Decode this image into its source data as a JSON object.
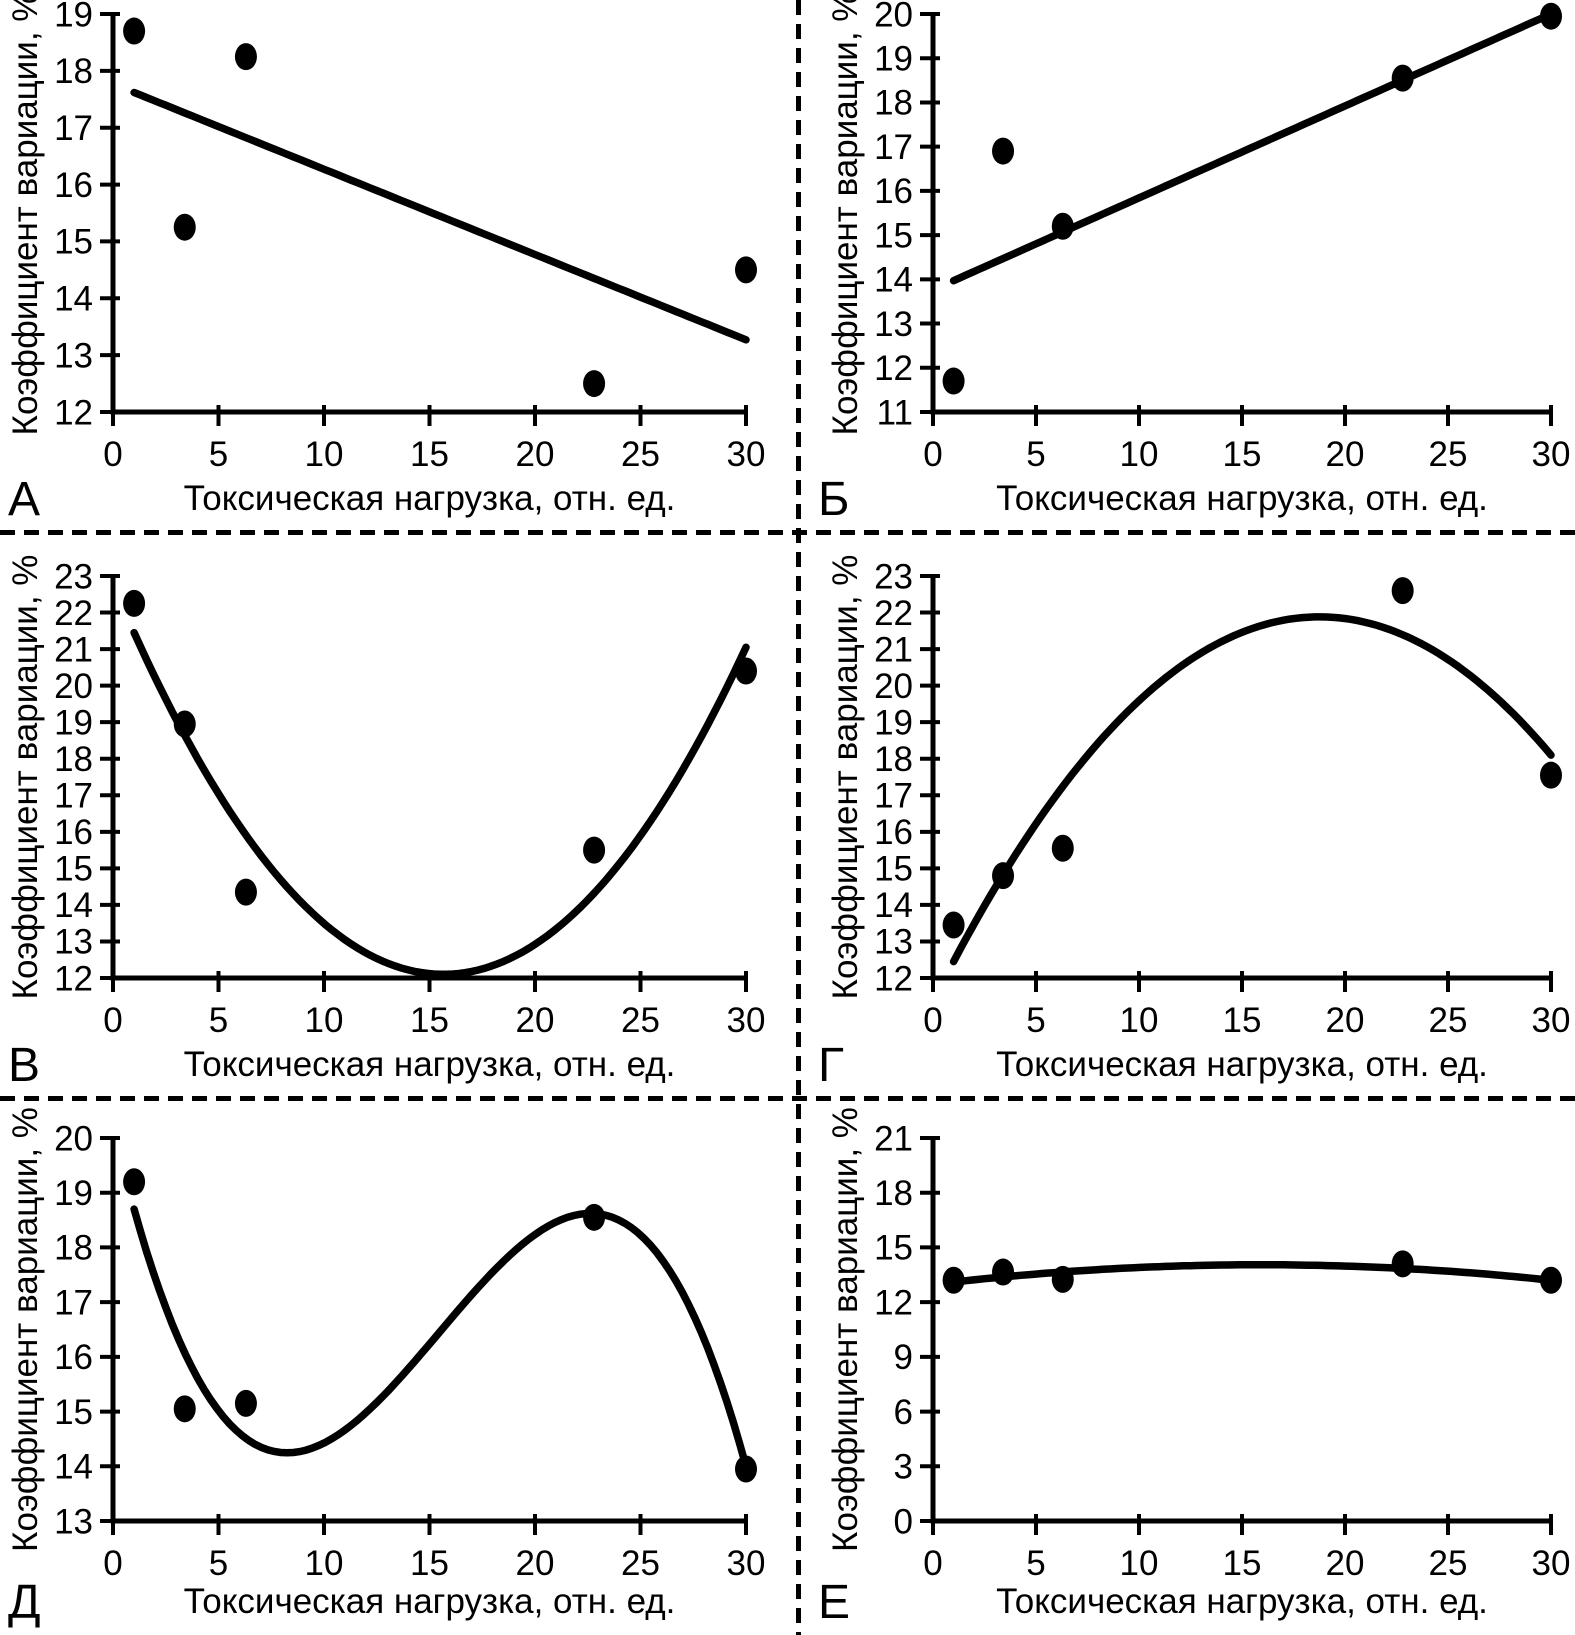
{
  "page": {
    "background": "#ffffff",
    "ink_color": "#000000",
    "divider_style": "dashed"
  },
  "chart_data": [
    {
      "type": "scatter",
      "panel_label": "А",
      "xlabel": "Токсическая нагрузка, отн. ед.",
      "ylabel": "Коэффициент вариации, %",
      "xlim": [
        0,
        30
      ],
      "xticks": [
        0,
        5,
        10,
        15,
        20,
        25,
        30
      ],
      "ylim": [
        12,
        19
      ],
      "yticks": [
        12,
        13,
        14,
        15,
        16,
        17,
        18,
        19
      ],
      "grid": false,
      "legend": "none",
      "marker_color": "#000000",
      "line_color": "#000000",
      "x": [
        1,
        3.4,
        6.3,
        22.8,
        30
      ],
      "y": [
        18.7,
        15.25,
        18.25,
        12.5,
        14.5
      ],
      "trend": {
        "shape": "linear",
        "anchors": [
          [
            1,
            17.62
          ],
          [
            30,
            13.27
          ]
        ]
      }
    },
    {
      "type": "scatter",
      "panel_label": "Б",
      "xlabel": "Токсическая нагрузка, отн. ед.",
      "ylabel": "Коэффициент вариации, %",
      "xlim": [
        0,
        30
      ],
      "xticks": [
        0,
        5,
        10,
        15,
        20,
        25,
        30
      ],
      "ylim": [
        11,
        20
      ],
      "yticks": [
        11,
        12,
        13,
        14,
        15,
        16,
        17,
        18,
        19,
        20
      ],
      "grid": false,
      "legend": "none",
      "marker_color": "#000000",
      "line_color": "#000000",
      "x": [
        1,
        3.4,
        6.3,
        22.8,
        30
      ],
      "y": [
        11.7,
        16.9,
        15.2,
        18.55,
        19.95
      ],
      "trend": {
        "shape": "linear",
        "anchors": [
          [
            1,
            13.97
          ],
          [
            30,
            20.0
          ]
        ]
      }
    },
    {
      "type": "scatter",
      "panel_label": "В",
      "xlabel": "Токсическая нагрузка, отн. ед.",
      "ylabel": "Коэффициент вариации, %",
      "xlim": [
        0,
        30
      ],
      "xticks": [
        0,
        5,
        10,
        15,
        20,
        25,
        30
      ],
      "ylim": [
        12,
        23
      ],
      "yticks": [
        12,
        13,
        14,
        15,
        16,
        17,
        18,
        19,
        20,
        21,
        22,
        23
      ],
      "grid": false,
      "legend": "none",
      "marker_color": "#000000",
      "line_color": "#000000",
      "x": [
        1,
        3.4,
        6.3,
        22.8,
        30
      ],
      "y": [
        22.25,
        18.95,
        14.35,
        15.5,
        20.4
      ],
      "trend": {
        "shape": "quadratic",
        "anchors": [
          [
            1,
            21.45
          ],
          [
            15.6,
            12.1
          ],
          [
            30,
            21.05
          ]
        ]
      }
    },
    {
      "type": "scatter",
      "panel_label": "Г",
      "xlabel": "Токсическая нагрузка, отн. ед.",
      "ylabel": "Коэффициент вариации, %",
      "xlim": [
        0,
        30
      ],
      "xticks": [
        0,
        5,
        10,
        15,
        20,
        25,
        30
      ],
      "ylim": [
        12,
        23
      ],
      "yticks": [
        12,
        13,
        14,
        15,
        16,
        17,
        18,
        19,
        20,
        21,
        22,
        23
      ],
      "grid": false,
      "legend": "none",
      "marker_color": "#000000",
      "line_color": "#000000",
      "x": [
        1,
        3.4,
        6.3,
        22.8,
        30
      ],
      "y": [
        13.45,
        14.8,
        15.55,
        22.6,
        17.55
      ],
      "trend": {
        "shape": "quadratic",
        "anchors": [
          [
            1,
            12.45
          ],
          [
            19,
            21.88
          ],
          [
            30,
            18.1
          ]
        ]
      }
    },
    {
      "type": "scatter",
      "panel_label": "Д",
      "xlabel": "Токсическая нагрузка, отн. ед.",
      "ylabel": "Коэффициент вариации, %",
      "xlim": [
        0,
        30
      ],
      "xticks": [
        0,
        5,
        10,
        15,
        20,
        25,
        30
      ],
      "ylim": [
        13,
        20
      ],
      "yticks": [
        13,
        14,
        15,
        16,
        17,
        18,
        19,
        20
      ],
      "grid": false,
      "legend": "none",
      "marker_color": "#000000",
      "line_color": "#000000",
      "x": [
        1,
        3.4,
        6.3,
        22.8,
        30
      ],
      "y": [
        19.2,
        15.05,
        15.15,
        18.55,
        13.95
      ],
      "trend": {
        "shape": "cubic",
        "anchors": [
          [
            1,
            18.7
          ],
          [
            8.5,
            14.25
          ],
          [
            22.8,
            18.62
          ],
          [
            30,
            14.0
          ]
        ]
      }
    },
    {
      "type": "scatter",
      "panel_label": "Е",
      "xlabel": "Токсическая нагрузка, отн. ед.",
      "ylabel": "Коэффициент вариации, %",
      "xlim": [
        0,
        30
      ],
      "xticks": [
        0,
        5,
        10,
        15,
        20,
        25,
        30
      ],
      "ylim": [
        0,
        21
      ],
      "yticks": [
        0,
        3,
        6,
        9,
        12,
        15,
        18,
        21
      ],
      "grid": false,
      "legend": "none",
      "marker_color": "#000000",
      "line_color": "#000000",
      "x": [
        1,
        3.4,
        6.3,
        22.8,
        30
      ],
      "y": [
        13.2,
        13.65,
        13.25,
        14.1,
        13.2
      ],
      "trend": {
        "shape": "quadratic",
        "anchors": [
          [
            1,
            13.1
          ],
          [
            16,
            14.05
          ],
          [
            30,
            13.2
          ]
        ]
      }
    }
  ]
}
